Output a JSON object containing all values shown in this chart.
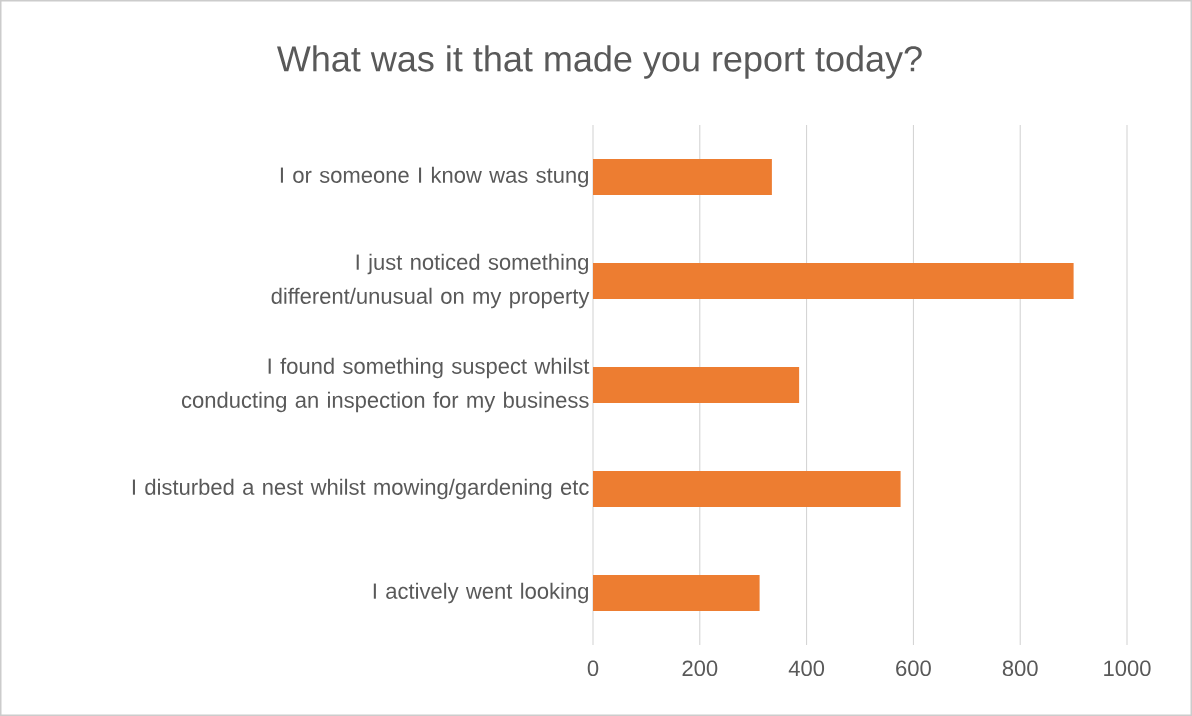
{
  "chart_data": {
    "type": "bar",
    "orientation": "horizontal",
    "title": "What was it that made you report today?",
    "categories": [
      "I or someone I know was stung",
      "I just noticed something different/unusual on my property",
      "I found something suspect whilst conducting an inspection for my business",
      "I disturbed a nest whilst mowing/gardening etc",
      "I actively went looking"
    ],
    "values": [
      335,
      900,
      386,
      576,
      312
    ],
    "color": "#ed7d31",
    "xlim": [
      0,
      1000
    ],
    "xticks": [
      0,
      200,
      400,
      600,
      800,
      1000
    ],
    "grid": "x"
  }
}
